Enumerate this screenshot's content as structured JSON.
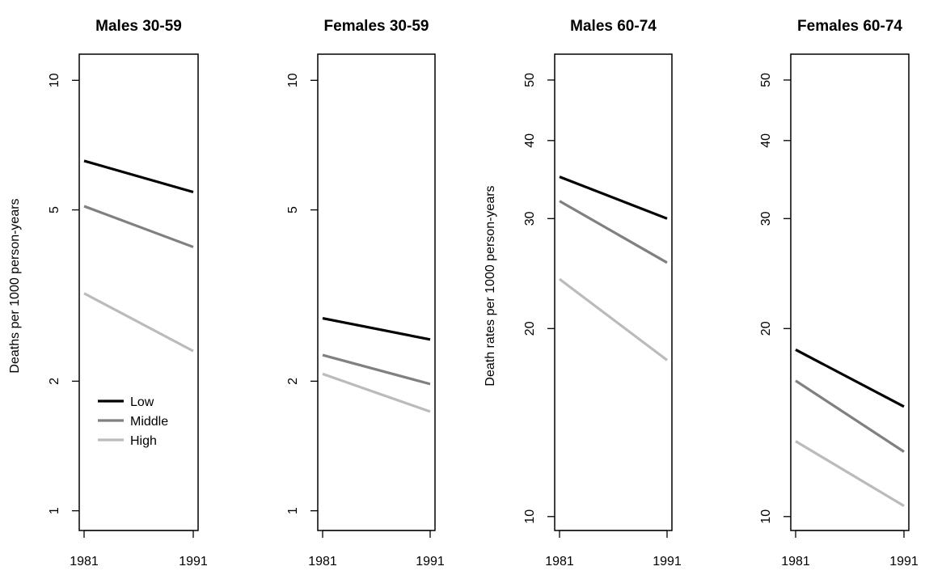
{
  "chart_data": [
    {
      "type": "line",
      "title": "Males 30-59",
      "ylabel": "Deaths per 1000 person-years",
      "yscale": "log",
      "ylim": [
        0.9,
        11.5
      ],
      "yticks": [
        1,
        2,
        5,
        10
      ],
      "x": [
        1981,
        1991
      ],
      "series": [
        {
          "name": "Low",
          "color": "#000000",
          "values": [
            6.5,
            5.5
          ]
        },
        {
          "name": "Middle",
          "color": "#808080",
          "values": [
            5.1,
            4.1
          ]
        },
        {
          "name": "High",
          "color": "#bbbbbb",
          "values": [
            3.2,
            2.35
          ]
        }
      ],
      "legend": {
        "position": "bottom-left",
        "entries": [
          "Low",
          "Middle",
          "High"
        ]
      }
    },
    {
      "type": "line",
      "title": "Females 30-59",
      "ylabel": "",
      "yscale": "log",
      "ylim": [
        0.9,
        11.5
      ],
      "yticks": [
        1,
        2,
        5,
        10
      ],
      "x": [
        1981,
        1991
      ],
      "series": [
        {
          "color": "#000000",
          "values": [
            2.8,
            2.5
          ]
        },
        {
          "color": "#808080",
          "values": [
            2.3,
            1.97
          ]
        },
        {
          "color": "#bbbbbb",
          "values": [
            2.08,
            1.7
          ]
        }
      ]
    },
    {
      "type": "line",
      "title": "Males 60-74",
      "ylabel": "Death rates per 1000 person-years",
      "yscale": "log",
      "ylim": [
        9.5,
        55
      ],
      "yticks": [
        10,
        20,
        30,
        40,
        50
      ],
      "x": [
        1981,
        1991
      ],
      "series": [
        {
          "color": "#000000",
          "values": [
            35,
            30
          ]
        },
        {
          "color": "#808080",
          "values": [
            32,
            25.5
          ]
        },
        {
          "color": "#bbbbbb",
          "values": [
            24,
            17.8
          ]
        }
      ]
    },
    {
      "type": "line",
      "title": "Females 60-74",
      "ylabel": "",
      "yscale": "log",
      "ylim": [
        9.5,
        55
      ],
      "yticks": [
        10,
        20,
        30,
        40,
        50
      ],
      "x": [
        1981,
        1991
      ],
      "series": [
        {
          "color": "#000000",
          "values": [
            18.5,
            15
          ]
        },
        {
          "color": "#808080",
          "values": [
            16.5,
            12.7
          ]
        },
        {
          "color": "#bbbbbb",
          "values": [
            13.2,
            10.4
          ]
        }
      ]
    }
  ]
}
